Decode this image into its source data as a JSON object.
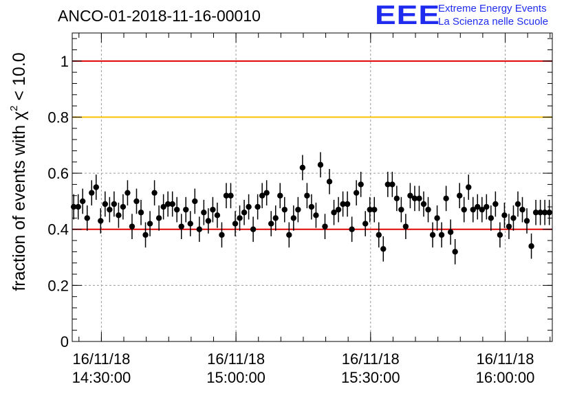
{
  "title": "ANCO-01-2018-11-16-00010",
  "logo": {
    "mark": "EEE",
    "line1": "Extreme Energy Events",
    "line2": "La Scienza nelle Scuole"
  },
  "colors": {
    "red_line": "#e00000",
    "yellow_line": "#ffc000",
    "points": "#000000",
    "grid": "#9a9a9a",
    "logo": "#1f2cf0"
  },
  "chart_data": {
    "type": "scatter",
    "title": "ANCO-01-2018-11-16-00010",
    "xlabel": "",
    "ylabel": "fraction of events with χ² < 10.0",
    "ylabel_parts": {
      "prefix": "fraction of events with ",
      "symbol": "χ",
      "sup": "2",
      "suffix": " < 10.0"
    },
    "ylim": [
      0,
      1.1
    ],
    "xlim": [
      "16/11/18 14:23:30",
      "16/11/18 16:10:30"
    ],
    "yticks": [
      0,
      0.2,
      0.4,
      0.6,
      0.8,
      1
    ],
    "ytick_labels": [
      "0",
      "0.2",
      "0.4",
      "0.6",
      "0.8",
      "1"
    ],
    "xticks": [
      {
        "t": "16/11/18 14:30:00",
        "date": "16/11/18",
        "time": "14:30:00"
      },
      {
        "t": "16/11/18 15:00:00",
        "date": "16/11/18",
        "time": "15:00:00"
      },
      {
        "t": "16/11/18 15:30:00",
        "date": "16/11/18",
        "time": "15:30:00"
      },
      {
        "t": "16/11/18 16:00:00",
        "date": "16/11/18",
        "time": "16:00:00"
      }
    ],
    "grid": true,
    "reference_lines": [
      {
        "y": 1.0,
        "color": "#e00000"
      },
      {
        "y": 0.8,
        "color": "#ffc000"
      },
      {
        "y": 0.4,
        "color": "#e00000"
      }
    ],
    "error_bar": 0.045,
    "series": [
      {
        "x": [
          "14:23:50",
          "14:24:50",
          "14:25:50",
          "14:26:50",
          "14:27:50",
          "14:28:50",
          "14:29:50",
          "14:30:50",
          "14:31:50",
          "14:32:50",
          "14:33:50",
          "14:34:50",
          "14:35:50",
          "14:36:50",
          "14:37:50",
          "14:38:50",
          "14:39:50",
          "14:40:50",
          "14:41:50",
          "14:42:50",
          "14:43:50",
          "14:44:50",
          "14:45:50",
          "14:46:50",
          "14:47:50",
          "14:48:50",
          "14:49:50",
          "14:50:50",
          "14:51:50",
          "14:52:50",
          "14:53:50",
          "14:54:50",
          "14:55:50",
          "14:56:50",
          "14:57:50",
          "14:58:50",
          "14:59:50",
          "15:00:50",
          "15:01:50",
          "15:02:50",
          "15:03:50",
          "15:04:50",
          "15:05:50",
          "15:06:50",
          "15:07:50",
          "15:08:50",
          "15:09:50",
          "15:10:50",
          "15:11:50",
          "15:12:50",
          "15:13:50",
          "15:14:50",
          "15:15:50",
          "15:16:50",
          "15:17:50",
          "15:18:50",
          "15:19:50",
          "15:20:50",
          "15:21:50",
          "15:22:50",
          "15:23:50",
          "15:24:50",
          "15:25:50",
          "15:26:50",
          "15:27:50",
          "15:28:50",
          "15:29:50",
          "15:30:50",
          "15:31:50",
          "15:32:50",
          "15:33:50",
          "15:34:50",
          "15:35:50",
          "15:36:50",
          "15:37:50",
          "15:38:50",
          "15:39:50",
          "15:40:50",
          "15:41:50",
          "15:42:50",
          "15:43:50",
          "15:44:50",
          "15:45:50",
          "15:46:50",
          "15:47:50",
          "15:48:50",
          "15:49:50",
          "15:50:50",
          "15:51:50",
          "15:52:50",
          "15:53:50",
          "15:54:50",
          "15:55:50",
          "15:56:50",
          "15:57:50",
          "15:58:50",
          "15:59:50",
          "16:00:50",
          "16:01:50",
          "16:02:50",
          "16:03:50",
          "16:04:50",
          "16:05:50",
          "16:06:50",
          "16:07:50",
          "16:08:50",
          "16:09:50"
        ],
        "y": [
          0.48,
          0.48,
          0.5,
          0.44,
          0.53,
          0.55,
          0.43,
          0.49,
          0.47,
          0.49,
          0.45,
          0.48,
          0.53,
          0.41,
          0.5,
          0.46,
          0.38,
          0.42,
          0.53,
          0.44,
          0.48,
          0.49,
          0.49,
          0.47,
          0.41,
          0.47,
          0.42,
          0.5,
          0.4,
          0.46,
          0.43,
          0.47,
          0.45,
          0.38,
          0.52,
          0.52,
          0.42,
          0.44,
          0.46,
          0.48,
          0.4,
          0.48,
          0.52,
          0.53,
          0.42,
          0.44,
          0.52,
          0.47,
          0.38,
          0.44,
          0.47,
          0.62,
          0.52,
          0.48,
          0.45,
          0.63,
          0.41,
          0.57,
          0.46,
          0.47,
          0.49,
          0.49,
          0.4,
          0.53,
          0.56,
          0.42,
          0.47,
          0.47,
          0.38,
          0.33,
          0.56,
          0.56,
          0.51,
          0.47,
          0.41,
          0.52,
          0.51,
          0.51,
          0.49,
          0.47,
          0.38,
          0.44,
          0.38,
          0.51,
          0.39,
          0.32,
          0.52,
          0.47,
          0.55,
          0.47,
          0.48,
          0.47,
          0.48,
          0.44,
          0.49,
          0.38,
          0.45,
          0.41,
          0.44,
          0.49,
          0.47,
          0.43,
          0.34,
          0.46,
          0.46,
          0.46,
          0.46
        ]
      }
    ]
  }
}
